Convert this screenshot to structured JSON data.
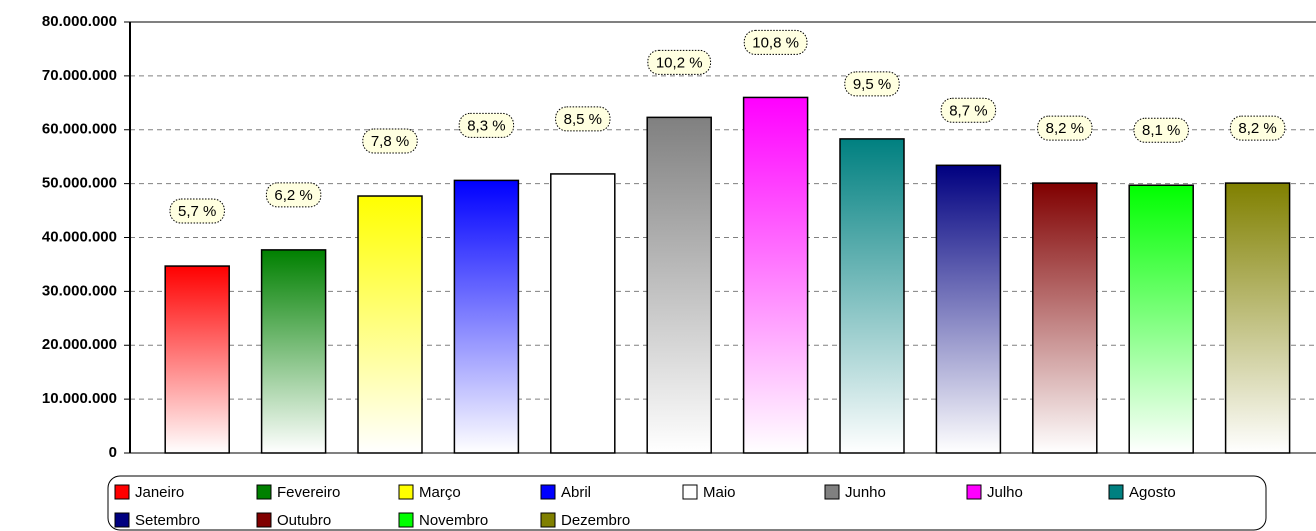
{
  "chart_data": {
    "type": "bar",
    "categories": [
      "Janeiro",
      "Fevereiro",
      "Março",
      "Abril",
      "Maio",
      "Junho",
      "Julho",
      "Agosto",
      "Setembro",
      "Outubro",
      "Novembro",
      "Dezembro"
    ],
    "values": [
      34700000,
      37700000,
      47700000,
      50600000,
      51800000,
      62300000,
      66000000,
      58300000,
      53400000,
      50100000,
      49700000,
      50100000
    ],
    "colors": [
      "#ff0000",
      "#008000",
      "#ffff00",
      "#0000ff",
      "#ffffff",
      "#808080",
      "#ff00ff",
      "#008080",
      "#000080",
      "#800000",
      "#00ff00",
      "#808000"
    ],
    "percent_labels": [
      "5,7 %",
      "6,2 %",
      "7,8 %",
      "8,3 %",
      "8,5 %",
      "10,2 %",
      "10,8 %",
      "9,5 %",
      "8,7 %",
      "8,2 %",
      "8,1 %",
      "8,2 %"
    ],
    "ylim": [
      0,
      80000000
    ],
    "yticks": [
      {
        "value": 0,
        "label": "0"
      },
      {
        "value": 10000000,
        "label": "10.000.000"
      },
      {
        "value": 20000000,
        "label": "20.000.000"
      },
      {
        "value": 30000000,
        "label": "30.000.000"
      },
      {
        "value": 40000000,
        "label": "40.000.000"
      },
      {
        "value": 50000000,
        "label": "50.000.000"
      },
      {
        "value": 60000000,
        "label": "60.000.000"
      },
      {
        "value": 70000000,
        "label": "70.000.000"
      },
      {
        "value": 80000000,
        "label": "80.000.000"
      }
    ],
    "grid": true,
    "gradient": true,
    "legend": "bottom"
  }
}
